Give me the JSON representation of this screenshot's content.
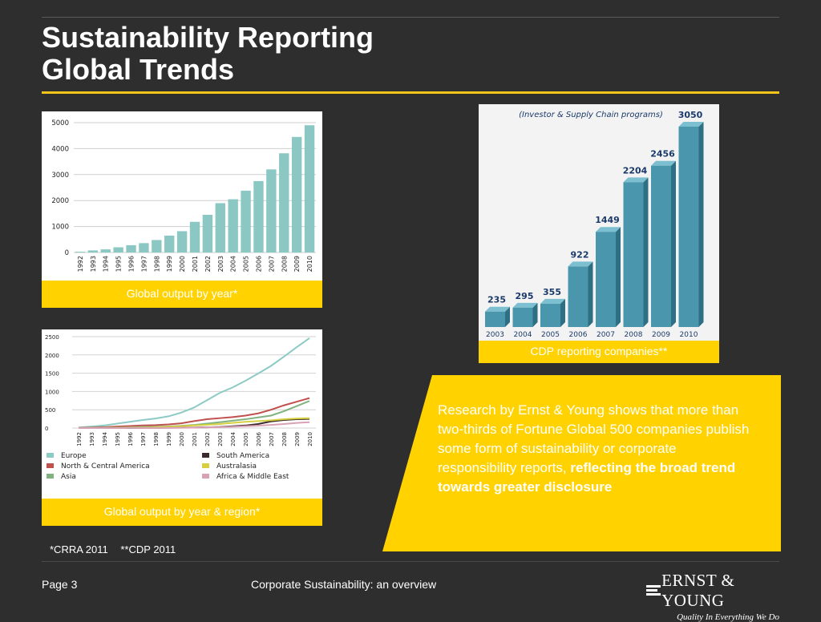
{
  "title": {
    "line1": "Sustainability Reporting",
    "line2": "Global Trends"
  },
  "colors": {
    "background": "#2e2e2e",
    "accent_yellow": "#ffd200",
    "bar_teal": "#8cc8c3",
    "cdp_bar": "#4a97ad"
  },
  "chart_data": [
    {
      "type": "bar",
      "caption": "Global output by year*",
      "categories": [
        "1992",
        "1993",
        "1994",
        "1995",
        "1996",
        "1997",
        "1998",
        "1999",
        "2000",
        "2001",
        "2002",
        "2003",
        "2004",
        "2005",
        "2006",
        "2007",
        "2008",
        "2009",
        "2010"
      ],
      "values": [
        30,
        80,
        120,
        200,
        280,
        360,
        480,
        650,
        820,
        1180,
        1450,
        1900,
        2050,
        2380,
        2750,
        3200,
        3820,
        4450,
        4900
      ],
      "yticks": [
        0,
        1000,
        2000,
        3000,
        4000,
        5000
      ],
      "ylim": [
        0,
        5000
      ],
      "grid": true
    },
    {
      "type": "line",
      "caption": "Global output by year & region*",
      "categories": [
        "1992",
        "1993",
        "1994",
        "1995",
        "1996",
        "1997",
        "1998",
        "1999",
        "2000",
        "2001",
        "2002",
        "2003",
        "2004",
        "2005",
        "2006",
        "2007",
        "2008",
        "2009",
        "2010"
      ],
      "yticks": [
        0,
        500,
        1000,
        1500,
        2000,
        2500
      ],
      "ylim": [
        0,
        2500
      ],
      "grid": true,
      "series": [
        {
          "name": "Europe",
          "color": "#8ccac6",
          "values": [
            15,
            40,
            70,
            120,
            170,
            220,
            260,
            320,
            420,
            560,
            760,
            960,
            1110,
            1290,
            1490,
            1700,
            1950,
            2210,
            2460
          ]
        },
        {
          "name": "North & Central America",
          "color": "#c0504d",
          "values": [
            5,
            15,
            25,
            40,
            55,
            70,
            80,
            100,
            130,
            190,
            240,
            270,
            300,
            340,
            400,
            500,
            620,
            720,
            820
          ]
        },
        {
          "name": "Asia",
          "color": "#7fb27f",
          "values": [
            2,
            5,
            10,
            15,
            20,
            30,
            35,
            45,
            60,
            85,
            120,
            160,
            200,
            240,
            290,
            340,
            460,
            600,
            740
          ]
        },
        {
          "name": "South America",
          "color": "#3d2b2b",
          "values": [
            0,
            0,
            0,
            2,
            3,
            5,
            6,
            8,
            10,
            15,
            20,
            30,
            50,
            70,
            110,
            180,
            220,
            240,
            250
          ]
        },
        {
          "name": "Australasia",
          "color": "#d6cf40",
          "values": [
            1,
            2,
            4,
            6,
            10,
            15,
            22,
            35,
            50,
            70,
            90,
            110,
            140,
            170,
            190,
            210,
            240,
            260,
            270
          ]
        },
        {
          "name": "Africa & Middle East",
          "color": "#d9a1b5",
          "values": [
            0,
            0,
            0,
            1,
            2,
            3,
            4,
            6,
            8,
            12,
            18,
            25,
            35,
            50,
            65,
            85,
            110,
            140,
            160
          ]
        }
      ],
      "legend": "bottom"
    },
    {
      "type": "bar",
      "caption": "CDP reporting companies**",
      "subtitle": "(Investor & Supply Chain programs)",
      "categories": [
        "2003",
        "2004",
        "2005",
        "2006",
        "2007",
        "2008",
        "2009",
        "2010"
      ],
      "values": [
        235,
        295,
        355,
        922,
        1449,
        2204,
        2456,
        3050
      ],
      "ylim": [
        0,
        3050
      ]
    }
  ],
  "research": {
    "text": "Research by Ernst & Young shows that more than two-thirds of Fortune Global 500 companies publish some form of sustainability or corporate responsibility reports, ",
    "emphasis": "reflecting the broad trend towards greater disclosure"
  },
  "footnotes": {
    "crra": "*CRRA 2011",
    "cdp": "**CDP 2011"
  },
  "footer": {
    "page": "Page 3",
    "center": "Corporate Sustainability: an overview",
    "brand": "ERNST & YOUNG",
    "tagline": "Quality In Everything We Do"
  }
}
